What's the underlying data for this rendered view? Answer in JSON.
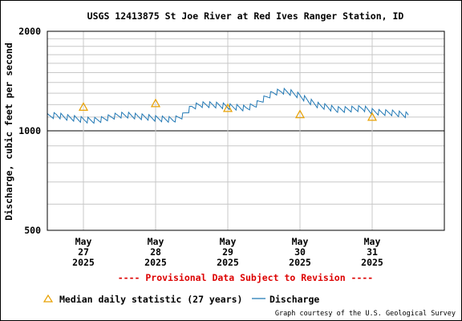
{
  "chart_data": {
    "type": "line",
    "title": "USGS 12413875 St Joe River at Red Ives Ranger Station, ID",
    "ylabel": "Discharge, cubic feet per second",
    "xlabel": "",
    "y_scale": "log",
    "ylim": [
      500,
      2000
    ],
    "y_ticks": [
      "2000",
      "1000",
      "500"
    ],
    "y_tick_values": [
      2000,
      1000,
      500
    ],
    "x_range": [
      "2025-05-26 12:00",
      "2025-06-01 00:00"
    ],
    "x_ticks": [
      {
        "month": "May",
        "day": "27",
        "year": "2025",
        "date": "2025-05-27"
      },
      {
        "month": "May",
        "day": "28",
        "year": "2025",
        "date": "2025-05-28"
      },
      {
        "month": "May",
        "day": "29",
        "year": "2025",
        "date": "2025-05-29"
      },
      {
        "month": "May",
        "day": "30",
        "year": "2025",
        "date": "2025-05-30"
      },
      {
        "month": "May",
        "day": "31",
        "year": "2025",
        "date": "2025-05-31"
      }
    ],
    "grid": true,
    "legend_position": "bottom",
    "series": [
      {
        "name": "Discharge",
        "color": "#1f77b4",
        "x": [
          "2025-05-26 12:00",
          "2025-05-26 15:00",
          "2025-05-26 18:00",
          "2025-05-26 21:00",
          "2025-05-27 00:00",
          "2025-05-27 03:00",
          "2025-05-27 06:00",
          "2025-05-27 09:00",
          "2025-05-27 12:00",
          "2025-05-27 15:00",
          "2025-05-27 18:00",
          "2025-05-27 21:00",
          "2025-05-28 00:00",
          "2025-05-28 03:00",
          "2025-05-28 06:00",
          "2025-05-28 09:00",
          "2025-05-28 12:00",
          "2025-05-28 15:00",
          "2025-05-28 18:00",
          "2025-05-28 21:00",
          "2025-05-29 00:00",
          "2025-05-29 03:00",
          "2025-05-29 06:00",
          "2025-05-29 09:00",
          "2025-05-29 12:00",
          "2025-05-29 15:00",
          "2025-05-29 18:00",
          "2025-05-29 21:00",
          "2025-05-30 00:00",
          "2025-05-30 03:00",
          "2025-05-30 06:00",
          "2025-05-30 09:00",
          "2025-05-30 12:00",
          "2025-05-30 15:00",
          "2025-05-30 18:00",
          "2025-05-30 21:00",
          "2025-05-31 00:00",
          "2025-05-31 03:00",
          "2025-05-31 06:00",
          "2025-05-31 09:00",
          "2025-05-31 12:00"
        ],
        "values": [
          1105,
          1115,
          1100,
          1090,
          1080,
          1075,
          1082,
          1100,
          1115,
          1115,
          1105,
          1100,
          1090,
          1085,
          1080,
          1110,
          1180,
          1200,
          1200,
          1195,
          1185,
          1178,
          1170,
          1195,
          1250,
          1300,
          1320,
          1305,
          1275,
          1230,
          1195,
          1180,
          1160,
          1160,
          1165,
          1170,
          1145,
          1135,
          1135,
          1125,
          1115
        ]
      },
      {
        "name": "Median daily statistic (27 years)",
        "marker": "triangle",
        "color": "#e8a000",
        "x": [
          "2025-05-27 00:00",
          "2025-05-28 00:00",
          "2025-05-29 00:00",
          "2025-05-30 00:00",
          "2025-05-31 00:00"
        ],
        "values": [
          1180,
          1210,
          1170,
          1120,
          1100
        ]
      }
    ]
  },
  "legend": {
    "median_label": "Median daily statistic (27 years)",
    "discharge_label": "Discharge"
  },
  "provisional_note": "---- Provisional Data Subject to Revision ----",
  "credit": "Graph courtesy of the U.S. Geological Survey",
  "colors": {
    "discharge": "#1f77b4",
    "median": "#e8a000",
    "provisional": "#dd0000",
    "grid": "#c8c8c8",
    "frame": "#000000"
  }
}
